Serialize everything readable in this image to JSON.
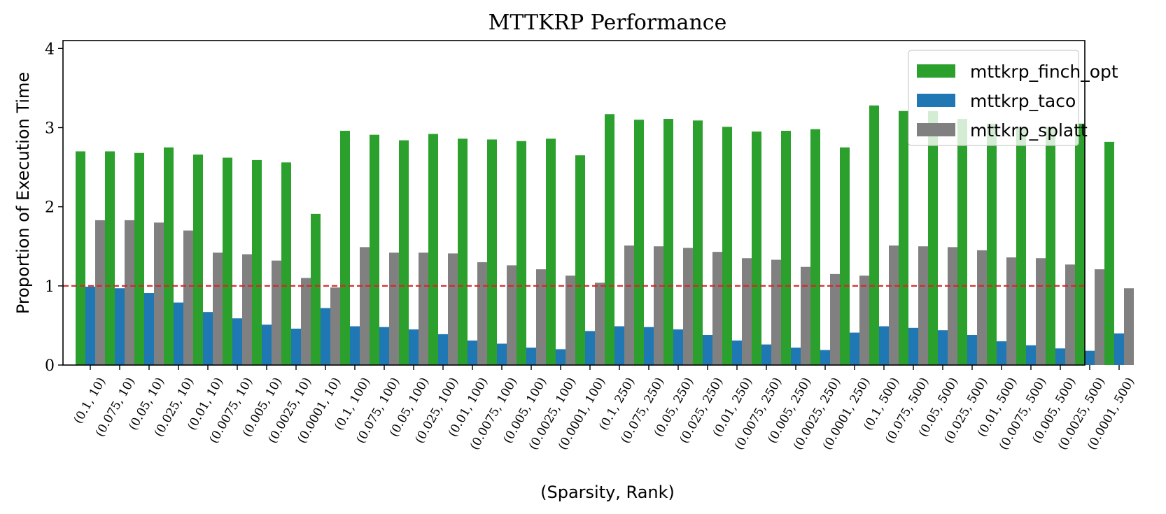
{
  "chart_data": {
    "type": "bar",
    "title": "MTTKRP Performance",
    "xlabel": "(Sparsity, Rank)",
    "ylabel": "Proportion of Execution Time",
    "ylim": [
      0,
      4.1
    ],
    "yticks": [
      0,
      1,
      2,
      3,
      4
    ],
    "reference_line": {
      "y": 1,
      "style": "dashed",
      "color": "#d62728"
    },
    "legend_position": "top-right",
    "categories": [
      "(0.1, 10)",
      "(0.075, 10)",
      "(0.05, 10)",
      "(0.025, 10)",
      "(0.01, 10)",
      "(0.0075, 10)",
      "(0.005, 10)",
      "(0.0025, 10)",
      "(0.0001, 10)",
      "(0.1, 100)",
      "(0.075, 100)",
      "(0.05, 100)",
      "(0.025, 100)",
      "(0.01, 100)",
      "(0.0075, 100)",
      "(0.005, 100)",
      "(0.0025, 100)",
      "(0.0001, 100)",
      "(0.1, 250)",
      "(0.075, 250)",
      "(0.05, 250)",
      "(0.025, 250)",
      "(0.01, 250)",
      "(0.0075, 250)",
      "(0.005, 250)",
      "(0.0025, 250)",
      "(0.0001, 250)",
      "(0.1, 500)",
      "(0.075, 500)",
      "(0.05, 500)",
      "(0.025, 500)",
      "(0.01, 500)",
      "(0.0075, 500)",
      "(0.005, 500)",
      "(0.0025, 500)",
      "(0.0001, 500)"
    ],
    "series": [
      {
        "name": "mttkrp_finch_opt",
        "color": "#2ca02c",
        "values": [
          2.7,
          2.7,
          2.68,
          2.75,
          2.66,
          2.62,
          2.59,
          2.56,
          1.91,
          2.96,
          2.91,
          2.84,
          2.92,
          2.86,
          2.85,
          2.83,
          2.86,
          2.65,
          3.17,
          3.1,
          3.11,
          3.09,
          3.01,
          2.95,
          2.96,
          2.98,
          2.75,
          3.28,
          3.21,
          3.21,
          3.11,
          3.05,
          3.01,
          3.01,
          3.05,
          2.82
        ]
      },
      {
        "name": "mttkrp_taco",
        "color": "#1f77b4",
        "values": [
          0.99,
          0.97,
          0.91,
          0.79,
          0.67,
          0.59,
          0.51,
          0.46,
          0.72,
          0.49,
          0.48,
          0.45,
          0.39,
          0.31,
          0.27,
          0.22,
          0.2,
          0.43,
          0.49,
          0.48,
          0.45,
          0.38,
          0.31,
          0.26,
          0.22,
          0.19,
          0.41,
          0.49,
          0.47,
          0.44,
          0.38,
          0.3,
          0.25,
          0.21,
          0.18,
          0.4
        ]
      },
      {
        "name": "mttkrp_splatt",
        "color": "#808080",
        "values": [
          1.83,
          1.83,
          1.8,
          1.7,
          1.42,
          1.4,
          1.32,
          1.1,
          0.98,
          1.49,
          1.42,
          1.42,
          1.41,
          1.3,
          1.26,
          1.21,
          1.13,
          1.04,
          1.51,
          1.5,
          1.48,
          1.43,
          1.35,
          1.33,
          1.24,
          1.15,
          1.13,
          1.51,
          1.5,
          1.49,
          1.45,
          1.36,
          1.35,
          1.27,
          1.21,
          0.97
        ]
      }
    ]
  }
}
